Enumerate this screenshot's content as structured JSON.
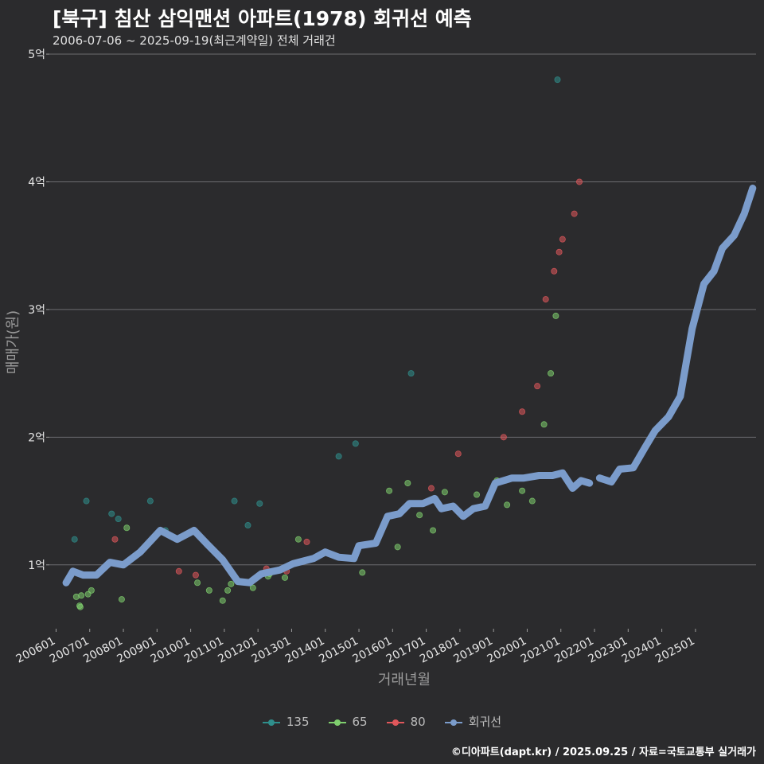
{
  "header": {
    "title": "[북구] 침산 삼익맨션 아파트(1978) 회귀선 예측",
    "subtitle": "2006-07-06 ~ 2025-09-19(최근계약일) 전체 거래건"
  },
  "footer": {
    "credit": "©디아파트(dapt.kr) / 2025.09.25 / 자료=국토교통부 실거래가"
  },
  "chart_data": {
    "type": "scatter",
    "xlabel": "거래년월",
    "ylabel": "매매가(원)",
    "xlim": [
      2005.8,
      2026.8
    ],
    "ylim": [
      0.5,
      5.05
    ],
    "y_ticks": [
      1,
      2,
      3,
      4,
      5
    ],
    "y_tick_labels": [
      "1억",
      "2억",
      "3억",
      "4억",
      "5억"
    ],
    "x_ticks": [
      2006,
      2007,
      2008,
      2009,
      2010,
      2011,
      2012,
      2013,
      2014,
      2015,
      2016,
      2017,
      2018,
      2019,
      2020,
      2021,
      2022,
      2023,
      2024,
      2025
    ],
    "x_tick_labels": [
      "200601",
      "200701",
      "200801",
      "200901",
      "201001",
      "201101",
      "201201",
      "201301",
      "201401",
      "201501",
      "201601",
      "201701",
      "201801",
      "201901",
      "202001",
      "202101",
      "202201",
      "202301",
      "202401",
      "202501"
    ],
    "grid": "horizontal",
    "legend_position": "bottom",
    "colors": {
      "135": "#2f8f8c",
      "65": "#7fcf6e",
      "80": "#e0575b",
      "회귀선": "#7b9ccb"
    },
    "series": [
      {
        "name": "135",
        "points": [
          [
            2006.55,
            1.2
          ],
          [
            2006.9,
            1.5
          ],
          [
            2007.65,
            1.4
          ],
          [
            2007.85,
            1.36
          ],
          [
            2008.8,
            1.5
          ],
          [
            2009.25,
            1.27
          ],
          [
            2011.3,
            1.5
          ],
          [
            2011.7,
            1.31
          ],
          [
            2012.05,
            1.48
          ],
          [
            2014.4,
            1.85
          ],
          [
            2014.9,
            1.95
          ],
          [
            2016.55,
            2.5
          ],
          [
            2020.9,
            4.8
          ]
        ]
      },
      {
        "name": "65",
        "points": [
          [
            2006.6,
            0.75
          ],
          [
            2006.7,
            0.68
          ],
          [
            2006.72,
            0.67
          ],
          [
            2006.75,
            0.76
          ],
          [
            2006.95,
            0.77
          ],
          [
            2007.05,
            0.8
          ],
          [
            2007.95,
            0.73
          ],
          [
            2008.1,
            1.29
          ],
          [
            2010.2,
            0.86
          ],
          [
            2010.55,
            0.8
          ],
          [
            2010.95,
            0.72
          ],
          [
            2011.1,
            0.8
          ],
          [
            2011.2,
            0.85
          ],
          [
            2011.85,
            0.82
          ],
          [
            2012.3,
            0.91
          ],
          [
            2012.35,
            0.93
          ],
          [
            2012.8,
            0.9
          ],
          [
            2013.2,
            1.2
          ],
          [
            2015.1,
            0.94
          ],
          [
            2015.9,
            1.58
          ],
          [
            2016.15,
            1.14
          ],
          [
            2016.45,
            1.64
          ],
          [
            2016.8,
            1.39
          ],
          [
            2017.2,
            1.27
          ],
          [
            2017.55,
            1.57
          ],
          [
            2018.5,
            1.55
          ],
          [
            2019.1,
            1.66
          ],
          [
            2019.4,
            1.47
          ],
          [
            2019.85,
            1.58
          ],
          [
            2019.95,
            1.68
          ],
          [
            2020.15,
            1.5
          ],
          [
            2020.5,
            2.1
          ],
          [
            2020.7,
            2.5
          ],
          [
            2020.85,
            2.95
          ]
        ]
      },
      {
        "name": "80",
        "points": [
          [
            2007.75,
            1.2
          ],
          [
            2009.65,
            0.95
          ],
          [
            2010.15,
            0.92
          ],
          [
            2012.25,
            0.97
          ],
          [
            2012.85,
            0.95
          ],
          [
            2013.45,
            1.18
          ],
          [
            2017.15,
            1.6
          ],
          [
            2017.95,
            1.87
          ],
          [
            2019.3,
            2.0
          ],
          [
            2019.85,
            2.2
          ],
          [
            2020.3,
            2.4
          ],
          [
            2020.55,
            3.08
          ],
          [
            2020.8,
            3.3
          ],
          [
            2020.95,
            3.45
          ],
          [
            2021.05,
            3.55
          ],
          [
            2021.4,
            3.75
          ],
          [
            2021.55,
            4.0
          ]
        ]
      },
      {
        "name": "회귀선",
        "points": [
          [
            2006.3,
            0.86
          ],
          [
            2006.5,
            0.95
          ],
          [
            2006.8,
            0.92
          ],
          [
            2007.2,
            0.92
          ],
          [
            2007.6,
            1.02
          ],
          [
            2008.0,
            1.0
          ],
          [
            2008.5,
            1.1
          ],
          [
            2009.1,
            1.27
          ],
          [
            2009.6,
            1.2
          ],
          [
            2010.1,
            1.27
          ],
          [
            2010.5,
            1.16
          ],
          [
            2010.95,
            1.04
          ],
          [
            2011.4,
            0.87
          ],
          [
            2011.75,
            0.86
          ],
          [
            2012.1,
            0.93
          ],
          [
            2012.65,
            0.96
          ],
          [
            2013.05,
            1.01
          ],
          [
            2013.65,
            1.05
          ],
          [
            2014.0,
            1.1
          ],
          [
            2014.4,
            1.06
          ],
          [
            2014.85,
            1.05
          ],
          [
            2015.0,
            1.15
          ],
          [
            2015.5,
            1.17
          ],
          [
            2015.85,
            1.38
          ],
          [
            2016.2,
            1.4
          ],
          [
            2016.5,
            1.48
          ],
          [
            2016.9,
            1.48
          ],
          [
            2017.25,
            1.52
          ],
          [
            2017.45,
            1.44
          ],
          [
            2017.8,
            1.46
          ],
          [
            2018.1,
            1.38
          ],
          [
            2018.4,
            1.44
          ],
          [
            2018.75,
            1.46
          ],
          [
            2019.05,
            1.64
          ],
          [
            2019.55,
            1.68
          ],
          [
            2019.9,
            1.68
          ],
          [
            2020.35,
            1.7
          ],
          [
            2020.75,
            1.7
          ],
          [
            2021.05,
            1.72
          ],
          [
            2021.35,
            1.6
          ],
          [
            2021.6,
            1.66
          ],
          [
            2021.85,
            1.64
          ],
          [
            2022.15,
            1.68
          ],
          [
            2022.5,
            1.65
          ],
          [
            2022.75,
            1.75
          ],
          [
            2023.15,
            1.76
          ],
          [
            2023.5,
            1.92
          ],
          [
            2023.8,
            2.05
          ],
          [
            2024.2,
            2.16
          ],
          [
            2024.55,
            2.32
          ],
          [
            2024.9,
            2.85
          ],
          [
            2025.25,
            3.2
          ],
          [
            2025.55,
            3.3
          ],
          [
            2025.8,
            3.48
          ],
          [
            2026.15,
            3.58
          ],
          [
            2026.45,
            3.75
          ],
          [
            2026.7,
            3.95
          ]
        ]
      }
    ]
  }
}
